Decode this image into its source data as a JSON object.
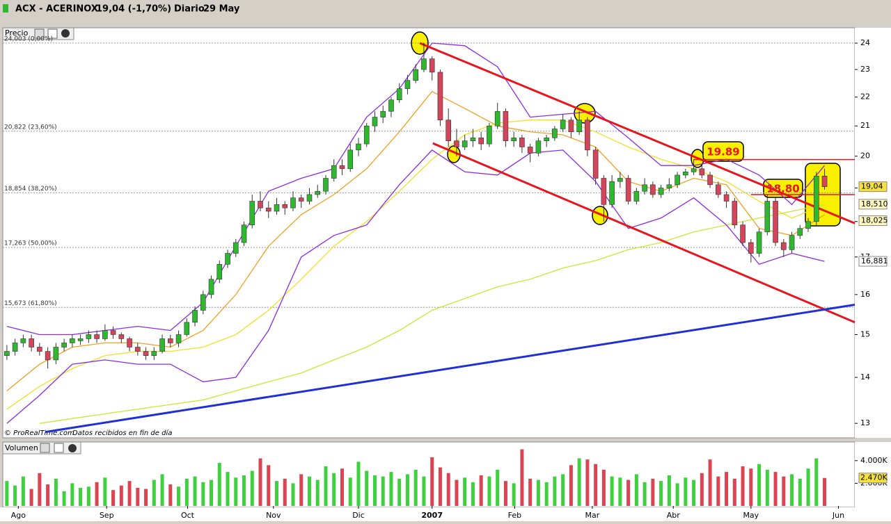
{
  "header": {
    "symbol": "ACX - ACERINOX",
    "quote": "19,04 (-1,70%)",
    "period": "Diario",
    "date": "29 May"
  },
  "footer": {
    "brand": "© ProRealTime.com",
    "note": "Datos recibidos en fin de día"
  },
  "chart_data": [
    {
      "type": "candlestick",
      "panel_label": "Precio",
      "log_scale": true,
      "up_color": "#2fb82f",
      "down_color": "#d2455a",
      "xlim": [
        -0.5,
        103.7
      ],
      "ylim": [
        12.7,
        24.6
      ],
      "yticks": [
        13,
        14,
        15,
        16,
        17,
        18,
        19,
        20,
        21,
        22,
        23,
        24
      ],
      "xticks": [
        {
          "value": 1.4,
          "label": "Ago"
        },
        {
          "value": 12.2,
          "label": "Sep"
        },
        {
          "value": 22.1,
          "label": "Oct"
        },
        {
          "value": 32.6,
          "label": "Nov"
        },
        {
          "value": 43,
          "label": "Dic"
        },
        {
          "value": 52,
          "label": "2007"
        },
        {
          "value": 62.1,
          "label": "Feb"
        },
        {
          "value": 71.6,
          "label": "Mar"
        },
        {
          "value": 81.5,
          "label": "Abr"
        },
        {
          "value": 91,
          "label": "May"
        },
        {
          "value": 101.7,
          "label": "Jun"
        }
      ],
      "ohlc": [
        [
          14.5,
          14.75,
          14.4,
          14.6
        ],
        [
          14.6,
          14.9,
          14.5,
          14.8
        ],
        [
          14.8,
          15.0,
          14.7,
          14.9
        ],
        [
          14.9,
          15.0,
          14.6,
          14.7
        ],
        [
          14.7,
          14.8,
          14.5,
          14.6
        ],
        [
          14.6,
          14.7,
          14.2,
          14.4
        ],
        [
          14.4,
          14.8,
          14.3,
          14.7
        ],
        [
          14.7,
          14.9,
          14.6,
          14.8
        ],
        [
          14.8,
          15.0,
          14.7,
          14.9
        ],
        [
          14.85,
          15.0,
          14.75,
          14.9
        ],
        [
          14.9,
          15.1,
          14.8,
          15.0
        ],
        [
          15.0,
          15.1,
          14.8,
          14.9
        ],
        [
          14.9,
          15.25,
          14.85,
          15.1
        ],
        [
          15.1,
          15.2,
          14.9,
          15.0
        ],
        [
          15.0,
          15.05,
          14.8,
          14.9
        ],
        [
          14.9,
          14.95,
          14.6,
          14.7
        ],
        [
          14.7,
          14.8,
          14.5,
          14.6
        ],
        [
          14.6,
          14.7,
          14.4,
          14.5
        ],
        [
          14.5,
          14.7,
          14.4,
          14.6
        ],
        [
          14.6,
          15.0,
          14.55,
          14.9
        ],
        [
          14.9,
          15.0,
          14.7,
          14.8
        ],
        [
          14.8,
          15.1,
          14.7,
          15.0
        ],
        [
          15.0,
          15.4,
          14.95,
          15.3
        ],
        [
          15.3,
          15.7,
          15.2,
          15.6
        ],
        [
          15.6,
          16.1,
          15.5,
          16.0
        ],
        [
          16.0,
          16.5,
          15.9,
          16.4
        ],
        [
          16.4,
          16.9,
          16.3,
          16.8
        ],
        [
          16.8,
          17.2,
          16.7,
          17.1
        ],
        [
          17.1,
          17.5,
          17.0,
          17.4
        ],
        [
          17.4,
          18.0,
          17.3,
          17.9
        ],
        [
          17.9,
          18.8,
          17.8,
          18.6
        ],
        [
          18.6,
          18.9,
          18.3,
          18.4
        ],
        [
          18.4,
          18.6,
          18.1,
          18.3
        ],
        [
          18.3,
          18.7,
          18.2,
          18.5
        ],
        [
          18.5,
          18.6,
          18.2,
          18.4
        ],
        [
          18.4,
          18.9,
          18.3,
          18.7
        ],
        [
          18.7,
          18.8,
          18.4,
          18.6
        ],
        [
          18.6,
          19.0,
          18.5,
          18.8
        ],
        [
          18.8,
          19.1,
          18.7,
          18.9
        ],
        [
          18.9,
          19.4,
          18.8,
          19.3
        ],
        [
          19.3,
          19.9,
          19.2,
          19.7
        ],
        [
          19.7,
          19.9,
          19.4,
          19.6
        ],
        [
          19.6,
          20.4,
          19.5,
          20.2
        ],
        [
          20.2,
          20.6,
          20.0,
          20.4
        ],
        [
          20.4,
          21.1,
          20.3,
          21.0
        ],
        [
          21.0,
          21.5,
          20.8,
          21.3
        ],
        [
          21.3,
          21.7,
          21.1,
          21.5
        ],
        [
          21.5,
          22.0,
          21.3,
          21.9
        ],
        [
          21.9,
          22.5,
          21.8,
          22.3
        ],
        [
          22.3,
          22.8,
          22.1,
          22.6
        ],
        [
          22.6,
          23.2,
          22.5,
          23.0
        ],
        [
          23.0,
          24.0,
          22.9,
          23.4
        ],
        [
          23.4,
          23.5,
          22.6,
          22.9
        ],
        [
          22.9,
          23.0,
          21.0,
          21.2
        ],
        [
          21.2,
          21.6,
          20.3,
          20.5
        ],
        [
          20.5,
          20.9,
          20.0,
          20.3
        ],
        [
          20.3,
          20.7,
          20.2,
          20.5
        ],
        [
          20.5,
          20.9,
          20.3,
          20.6
        ],
        [
          20.6,
          20.8,
          20.2,
          20.4
        ],
        [
          20.4,
          21.1,
          20.3,
          21.0
        ],
        [
          21.0,
          21.8,
          20.9,
          21.5
        ],
        [
          21.5,
          21.6,
          20.3,
          20.5
        ],
        [
          20.5,
          20.8,
          20.3,
          20.6
        ],
        [
          20.6,
          20.7,
          20.1,
          20.3
        ],
        [
          20.3,
          20.4,
          19.8,
          20.1
        ],
        [
          20.1,
          20.6,
          20.0,
          20.5
        ],
        [
          20.5,
          20.7,
          20.3,
          20.6
        ],
        [
          20.6,
          21.0,
          20.5,
          20.9
        ],
        [
          20.9,
          21.4,
          20.8,
          21.2
        ],
        [
          21.2,
          21.3,
          20.6,
          20.8
        ],
        [
          20.8,
          21.5,
          20.7,
          21.2
        ],
        [
          21.2,
          21.3,
          20.0,
          20.2
        ],
        [
          20.2,
          20.3,
          19.1,
          19.3
        ],
        [
          19.3,
          19.4,
          18.0,
          18.5
        ],
        [
          18.5,
          19.4,
          18.4,
          19.2
        ],
        [
          19.2,
          19.5,
          19.0,
          19.3
        ],
        [
          19.3,
          19.4,
          18.5,
          18.6
        ],
        [
          18.6,
          19.0,
          18.5,
          18.9
        ],
        [
          18.9,
          19.3,
          18.8,
          19.1
        ],
        [
          19.1,
          19.2,
          18.7,
          18.8
        ],
        [
          18.8,
          19.1,
          18.7,
          19.0
        ],
        [
          19.0,
          19.3,
          18.9,
          19.1
        ],
        [
          19.1,
          19.5,
          19.0,
          19.4
        ],
        [
          19.4,
          19.6,
          19.3,
          19.5
        ],
        [
          19.5,
          19.9,
          19.4,
          19.6
        ],
        [
          19.6,
          19.7,
          19.3,
          19.4
        ],
        [
          19.4,
          19.5,
          19.0,
          19.1
        ],
        [
          19.1,
          19.2,
          18.7,
          18.8
        ],
        [
          18.8,
          18.9,
          18.4,
          18.6
        ],
        [
          18.6,
          18.7,
          17.8,
          17.9
        ],
        [
          17.9,
          18.0,
          17.3,
          17.4
        ],
        [
          17.4,
          17.5,
          16.85,
          17.1
        ],
        [
          17.1,
          17.8,
          17.0,
          17.7
        ],
        [
          17.7,
          18.8,
          17.6,
          18.6
        ],
        [
          18.6,
          18.7,
          17.3,
          17.4
        ],
        [
          17.4,
          17.5,
          17.0,
          17.2
        ],
        [
          17.2,
          17.7,
          17.1,
          17.6
        ],
        [
          17.6,
          17.9,
          17.5,
          17.8
        ],
        [
          17.8,
          18.1,
          17.7,
          18.0
        ],
        [
          18.0,
          19.5,
          17.9,
          19.37
        ],
        [
          19.37,
          19.6,
          18.95,
          19.04
        ]
      ],
      "lines": [
        {
          "color": "#f0a020",
          "x": [
            0,
            4,
            8,
            12,
            16,
            20,
            24,
            28,
            32,
            36,
            40,
            44,
            48,
            52,
            56,
            60,
            64,
            68,
            72,
            76,
            80,
            84,
            88,
            92,
            96,
            100
          ],
          "values": [
            13.7,
            14.3,
            14.7,
            14.8,
            14.8,
            14.7,
            15.1,
            16.0,
            17.3,
            18.2,
            18.8,
            19.6,
            20.8,
            22.2,
            21.6,
            21.0,
            20.8,
            20.7,
            20.3,
            19.2,
            18.9,
            19.3,
            19.1,
            17.8,
            17.6,
            18.2
          ]
        },
        {
          "color": "#f2e020",
          "x": [
            0,
            4,
            8,
            12,
            16,
            20,
            24,
            28,
            32,
            36,
            40,
            44,
            48,
            52,
            56,
            60,
            64,
            68,
            72,
            76,
            80,
            84,
            88,
            92,
            96,
            100
          ],
          "values": [
            13.3,
            13.8,
            14.2,
            14.5,
            14.6,
            14.6,
            14.7,
            15.0,
            15.6,
            16.4,
            17.3,
            18.0,
            18.9,
            19.9,
            20.7,
            21.1,
            21.2,
            21.2,
            20.8,
            20.3,
            19.9,
            19.6,
            19.2,
            18.6,
            18.1,
            18.5
          ]
        },
        {
          "color": "#c8e830",
          "x": [
            0,
            4,
            8,
            12,
            16,
            20,
            24,
            28,
            32,
            36,
            40,
            44,
            48,
            52,
            56,
            60,
            64,
            68,
            72,
            76,
            80,
            84,
            88,
            92,
            96,
            100
          ],
          "values": [
            null,
            13.0,
            13.1,
            13.2,
            13.3,
            13.4,
            13.5,
            13.7,
            13.9,
            14.1,
            14.4,
            14.7,
            15.1,
            15.6,
            15.9,
            16.2,
            16.4,
            16.7,
            16.9,
            17.2,
            17.4,
            17.7,
            17.9,
            18.1,
            18.3,
            18.5
          ]
        },
        {
          "color": "#8a2be2",
          "x": [
            0,
            4,
            8,
            12,
            16,
            20,
            24,
            28,
            32,
            36,
            40,
            44,
            48,
            52,
            56,
            60,
            64,
            68,
            72,
            76,
            80,
            84,
            88,
            92,
            96,
            100
          ],
          "values": [
            15.2,
            15.0,
            15.0,
            15.1,
            15.2,
            15.1,
            15.8,
            17.3,
            18.9,
            19.3,
            19.6,
            21.3,
            22.3,
            24.0,
            23.9,
            23.1,
            21.3,
            21.4,
            21.5,
            20.6,
            19.7,
            19.7,
            19.9,
            19.4,
            18.5,
            19.7
          ]
        },
        {
          "color": "#8a2be2",
          "x": [
            0,
            4,
            8,
            12,
            16,
            20,
            24,
            28,
            32,
            36,
            40,
            44,
            48,
            52,
            56,
            60,
            64,
            68,
            72,
            76,
            80,
            84,
            88,
            92,
            96,
            100
          ],
          "values": [
            13.0,
            13.6,
            14.3,
            14.4,
            14.3,
            14.3,
            13.9,
            14.0,
            15.1,
            17.0,
            17.6,
            17.9,
            19.1,
            20.2,
            19.5,
            19.4,
            20.1,
            20.2,
            19.2,
            17.8,
            18.1,
            18.7,
            17.9,
            16.8,
            17.1,
            16.88
          ]
        }
      ],
      "trendlines": [
        {
          "color": "#e8141e",
          "x": [
            50.5,
            103.7
          ],
          "values": [
            24.0,
            17.95
          ]
        },
        {
          "color": "#e8141e",
          "x": [
            52.1,
            103.7
          ],
          "values": [
            20.42,
            15.3
          ]
        },
        {
          "color": "#1f2fd6",
          "x": [
            4.7,
            103.7
          ],
          "values": [
            12.82,
            15.74
          ]
        }
      ],
      "levels": [
        {
          "value": 24.003,
          "label": "24,003 (0,00%)"
        },
        {
          "value": 20.822,
          "label": "20,822 (23,60%)"
        },
        {
          "value": 18.854,
          "label": "18,854 (38,20%)"
        },
        {
          "value": 17.263,
          "label": "17,263 (50,00%)"
        },
        {
          "value": 15.673,
          "label": "15,673 (61,80%)"
        }
      ],
      "hlines": [
        {
          "value": 19.89,
          "label": "19.89",
          "x": 84
        },
        {
          "value": 18.8,
          "label": "18.80",
          "x": 91
        }
      ],
      "price_marks": [
        {
          "value": 19.04,
          "label": "19,04",
          "color": "#f5e042"
        },
        {
          "value": 18.51,
          "label": "18,510",
          "color": "#fff7c0"
        },
        {
          "value": 18.025,
          "label": "18,025",
          "color": "#fff7c0"
        },
        {
          "value": 16.881,
          "label": "16,881",
          "color": "#ffffff"
        }
      ]
    },
    {
      "type": "bar",
      "panel_label": "Volumen",
      "ylim": [
        0,
        5400
      ],
      "yticks": [
        {
          "value": 2000,
          "label": "2.000K"
        },
        {
          "value": 4000,
          "label": "4.000K"
        }
      ],
      "last_mark": {
        "value": 2470,
        "label": "2.470K"
      },
      "up_color": "#3fcf3f",
      "down_color": "#db4452",
      "values": [
        2200,
        1800,
        2600,
        1500,
        2900,
        1900,
        2400,
        1300,
        2000,
        1600,
        1700,
        2100,
        2500,
        1400,
        1800,
        2200,
        1600,
        1500,
        2300,
        2800,
        1900,
        1700,
        2400,
        2600,
        2100,
        2300,
        3800,
        3000,
        2500,
        2700,
        3100,
        4200,
        3600,
        2200,
        2400,
        2000,
        2800,
        2600,
        2300,
        3500,
        2900,
        3300,
        2500,
        3900,
        3100,
        2700,
        2600,
        3000,
        2400,
        2800,
        3200,
        2600,
        4300,
        3400,
        2900,
        2300,
        2500,
        2100,
        2700,
        2600,
        3200,
        2200,
        2000,
        5000,
        2400,
        2300,
        2100,
        2600,
        2800,
        3600,
        4200,
        4100,
        3700,
        3200,
        2600,
        2500,
        2300,
        2800,
        2100,
        2400,
        2200,
        2700,
        2000,
        2500,
        2300,
        2900,
        4100,
        2600,
        3000,
        2400,
        3500,
        3300,
        3700,
        3200,
        3000,
        2600,
        2800,
        2400,
        3300,
        4200,
        2470
      ]
    }
  ]
}
